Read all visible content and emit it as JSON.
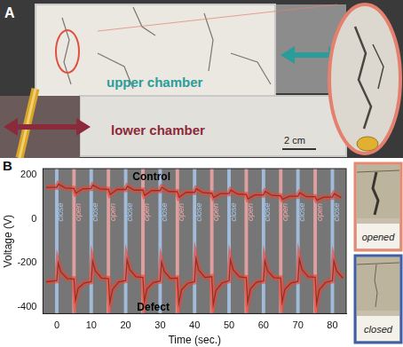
{
  "panel_a": {
    "label": "A",
    "upper_chamber": "upper chamber",
    "lower_chamber": "lower chamber",
    "scale_bar": "2 cm"
  },
  "panel_b_label": "B",
  "chart_data": {
    "type": "line",
    "x_label": "Time (sec.)",
    "y_label": "Voltage (V)",
    "xlim": [
      -4,
      84
    ],
    "xticks": [
      0,
      10,
      20,
      30,
      40,
      50,
      60,
      70,
      80
    ],
    "ylim": [
      -430,
      230
    ],
    "yticks": [
      -400,
      -200,
      0,
      200
    ],
    "grid": false,
    "bands": [
      {
        "label": "close",
        "color": "#a9c9ec",
        "x": [
          0,
          10,
          20,
          30,
          40,
          50,
          60,
          70,
          80
        ]
      },
      {
        "label": "open",
        "color": "#f3a7a7",
        "x": [
          5,
          15,
          25,
          35,
          45,
          55,
          65,
          75
        ]
      }
    ],
    "series": [
      {
        "name": "Control",
        "color": "#000000",
        "x": [
          -3,
          0,
          0.5,
          2.5,
          5,
          5.5,
          7.5,
          10,
          10.5,
          12.5,
          15,
          15.5,
          17.5,
          20,
          20.5,
          22.5,
          25,
          25.5,
          27.5,
          30,
          30.5,
          32.5,
          35,
          35.5,
          37.5,
          40,
          40.5,
          42.5,
          45,
          45.5,
          47.5,
          50,
          50.5,
          52.5,
          55,
          55.5,
          57.5,
          60,
          60.5,
          62.5,
          65,
          65.5,
          67.5,
          70,
          70.5,
          72.5,
          75,
          75.5,
          77.5,
          80,
          80.5,
          82.5
        ],
        "values": [
          145,
          145,
          160,
          142,
          140,
          118,
          138,
          140,
          155,
          138,
          136,
          112,
          135,
          135,
          150,
          132,
          132,
          108,
          130,
          130,
          145,
          126,
          125,
          100,
          122,
          122,
          138,
          120,
          118,
          98,
          116,
          116,
          132,
          114,
          112,
          92,
          110,
          110,
          126,
          108,
          106,
          90,
          104,
          104,
          120,
          102,
          102,
          86,
          100,
          100,
          116,
          98
        ]
      },
      {
        "name": "Defect",
        "color": "#000000",
        "x": [
          -3,
          0,
          0.4,
          1.2,
          3,
          5,
          5.4,
          6.2,
          8,
          10,
          10.4,
          11.2,
          13,
          15,
          15.4,
          16.2,
          18,
          20,
          20.4,
          21.2,
          23,
          25,
          25.4,
          26.2,
          28,
          30,
          30.4,
          31.2,
          33,
          35,
          35.4,
          36.2,
          38,
          40,
          40.4,
          41.2,
          43,
          45,
          45.4,
          46.2,
          48,
          50,
          50.4,
          51.2,
          53,
          55,
          55.4,
          56.2,
          58,
          60,
          60.4,
          61.2,
          63,
          65,
          65.4,
          66.2,
          68,
          70,
          70.4,
          71.2,
          73,
          75,
          75.4,
          76.2,
          78,
          80,
          80.4,
          81.2,
          83
        ],
        "values": [
          -285,
          -280,
          -200,
          -240,
          -270,
          -272,
          -370,
          -315,
          -290,
          -285,
          -190,
          -235,
          -268,
          -270,
          -380,
          -320,
          -285,
          -280,
          -185,
          -230,
          -262,
          -265,
          -375,
          -318,
          -288,
          -282,
          -195,
          -238,
          -270,
          -268,
          -385,
          -322,
          -292,
          -285,
          -180,
          -232,
          -265,
          -262,
          -390,
          -325,
          -290,
          -280,
          -185,
          -230,
          -262,
          -266,
          -380,
          -318,
          -286,
          -282,
          -190,
          -236,
          -266,
          -268,
          -378,
          -320,
          -290,
          -284,
          -182,
          -230,
          -262,
          -264,
          -385,
          -322,
          -288,
          -280,
          -190,
          -235,
          -268
        ]
      }
    ]
  },
  "photos": [
    {
      "label": "opened",
      "color": "#e58a72"
    },
    {
      "label": "closed",
      "color": "#3d5fa6"
    }
  ]
}
